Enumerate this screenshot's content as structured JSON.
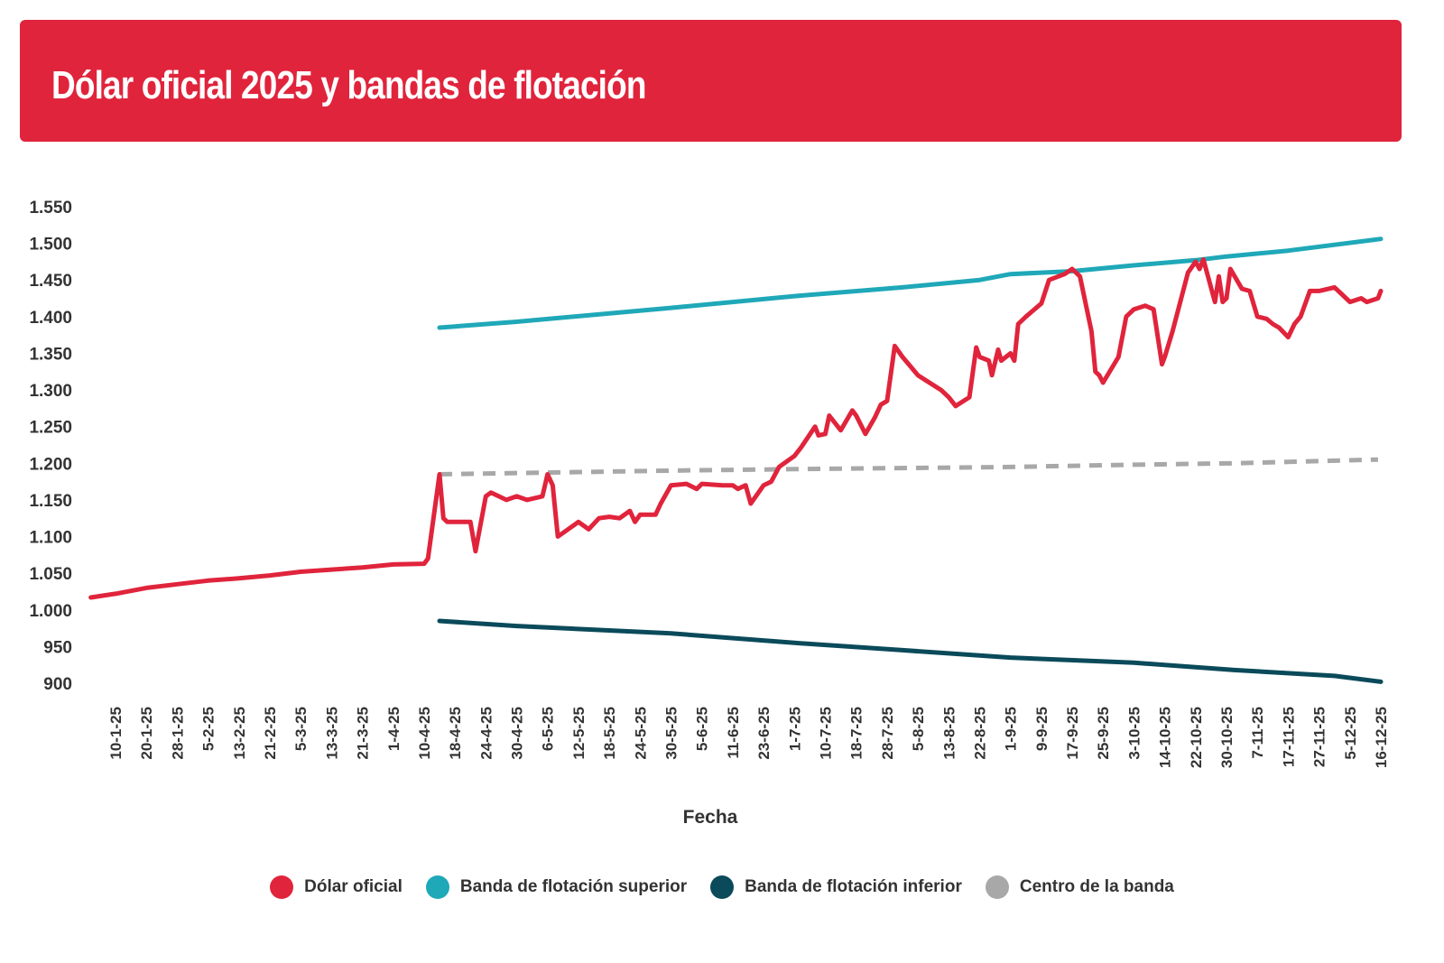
{
  "header": {
    "title": "Dólar oficial 2025 y bandas de flotación",
    "color": "#e0243c"
  },
  "chart_data": {
    "type": "line",
    "title": "Dólar oficial 2025 y bandas de flotación",
    "xlabel": "Fecha",
    "ylabel": "",
    "ylim": [
      900,
      1550
    ],
    "yticks": [
      900,
      950,
      1000,
      1050,
      1100,
      1150,
      1200,
      1250,
      1300,
      1350,
      1400,
      1450,
      1500,
      1550
    ],
    "ytick_labels": [
      "900",
      "950",
      "1.000",
      "1.050",
      "1.100",
      "1.150",
      "1.200",
      "1.250",
      "1.300",
      "1.350",
      "1.400",
      "1.450",
      "1.500",
      "1.550"
    ],
    "xtick_labels": [
      "10-1-25",
      "20-1-25",
      "28-1-25",
      "5-2-25",
      "13-2-25",
      "21-2-25",
      "5-3-25",
      "13-3-25",
      "21-3-25",
      "1-4-25",
      "10-4-25",
      "18-4-25",
      "24-4-25",
      "30-4-25",
      "6-5-25",
      "12-5-25",
      "18-5-25",
      "24-5-25",
      "30-5-25",
      "5-6-25",
      "11-6-25",
      "23-6-25",
      "1-7-25",
      "10-7-25",
      "18-7-25",
      "28-7-25",
      "5-8-25",
      "13-8-25",
      "22-8-25",
      "1-9-25",
      "9-9-25",
      "17-9-25",
      "25-9-25",
      "3-10-25",
      "14-10-25",
      "22-10-25",
      "30-10-25",
      "7-11-25",
      "17-11-25",
      "27-11-25",
      "5-12-25",
      "16-12-25"
    ],
    "grid": false,
    "legend_position": "bottom",
    "series": [
      {
        "name": "Dólar oficial",
        "color": "#e0243c",
        "style": "solid",
        "points": [
          [
            "2-1-25",
            1017
          ],
          [
            "10-1-25",
            1022
          ],
          [
            "20-1-25",
            1030
          ],
          [
            "28-1-25",
            1035
          ],
          [
            "5-2-25",
            1040
          ],
          [
            "13-2-25",
            1043
          ],
          [
            "21-2-25",
            1047
          ],
          [
            "5-3-25",
            1052
          ],
          [
            "13-3-25",
            1055
          ],
          [
            "21-3-25",
            1058
          ],
          [
            "1-4-25",
            1062
          ],
          [
            "10-4-25",
            1063
          ],
          [
            "11-4-25",
            1070
          ],
          [
            "14-4-25",
            1185
          ],
          [
            "15-4-25",
            1125
          ],
          [
            "16-4-25",
            1120
          ],
          [
            "21-4-25",
            1120
          ],
          [
            "22-4-25",
            1080
          ],
          [
            "24-4-25",
            1155
          ],
          [
            "25-4-25",
            1160
          ],
          [
            "28-4-25",
            1150
          ],
          [
            "30-4-25",
            1155
          ],
          [
            "2-5-25",
            1150
          ],
          [
            "5-5-25",
            1155
          ],
          [
            "6-5-25",
            1185
          ],
          [
            "7-5-25",
            1170
          ],
          [
            "8-5-25",
            1100
          ],
          [
            "9-5-25",
            1105
          ],
          [
            "12-5-25",
            1120
          ],
          [
            "14-5-25",
            1110
          ],
          [
            "16-5-25",
            1125
          ],
          [
            "18-5-25",
            1127
          ],
          [
            "20-5-25",
            1125
          ],
          [
            "22-5-25",
            1135
          ],
          [
            "23-5-25",
            1120
          ],
          [
            "24-5-25",
            1130
          ],
          [
            "27-5-25",
            1130
          ],
          [
            "28-5-25",
            1145
          ],
          [
            "30-5-25",
            1170
          ],
          [
            "2-6-25",
            1172
          ],
          [
            "4-6-25",
            1165
          ],
          [
            "5-6-25",
            1172
          ],
          [
            "9-6-25",
            1170
          ],
          [
            "11-6-25",
            1170
          ],
          [
            "13-6-25",
            1165
          ],
          [
            "16-6-25",
            1170
          ],
          [
            "18-6-25",
            1145
          ],
          [
            "20-6-25",
            1155
          ],
          [
            "23-6-25",
            1170
          ],
          [
            "25-6-25",
            1175
          ],
          [
            "27-6-25",
            1195
          ],
          [
            "1-7-25",
            1210
          ],
          [
            "3-7-25",
            1222
          ],
          [
            "7-7-25",
            1250
          ],
          [
            "8-7-25",
            1238
          ],
          [
            "10-7-25",
            1240
          ],
          [
            "11-7-25",
            1265
          ],
          [
            "14-7-25",
            1245
          ],
          [
            "17-7-25",
            1272
          ],
          [
            "18-7-25",
            1265
          ],
          [
            "21-7-25",
            1240
          ],
          [
            "24-7-25",
            1262
          ],
          [
            "26-7-25",
            1280
          ],
          [
            "28-7-25",
            1285
          ],
          [
            "30-7-25",
            1360
          ],
          [
            "1-8-25",
            1345
          ],
          [
            "5-8-25",
            1320
          ],
          [
            "8-8-25",
            1310
          ],
          [
            "11-8-25",
            1300
          ],
          [
            "13-8-25",
            1290
          ],
          [
            "15-8-25",
            1278
          ],
          [
            "19-8-25",
            1290
          ],
          [
            "21-8-25",
            1358
          ],
          [
            "22-8-25",
            1345
          ],
          [
            "25-8-25",
            1340
          ],
          [
            "26-8-25",
            1320
          ],
          [
            "28-8-25",
            1355
          ],
          [
            "29-8-25",
            1340
          ],
          [
            "1-9-25",
            1350
          ],
          [
            "2-9-25",
            1340
          ],
          [
            "3-9-25",
            1390
          ],
          [
            "5-9-25",
            1400
          ],
          [
            "9-9-25",
            1418
          ],
          [
            "11-9-25",
            1450
          ],
          [
            "15-9-25",
            1458
          ],
          [
            "17-9-25",
            1465
          ],
          [
            "19-9-25",
            1455
          ],
          [
            "22-9-25",
            1380
          ],
          [
            "23-9-25",
            1325
          ],
          [
            "24-9-25",
            1320
          ],
          [
            "25-9-25",
            1310
          ],
          [
            "29-9-25",
            1345
          ],
          [
            "1-10-25",
            1400
          ],
          [
            "3-10-25",
            1410
          ],
          [
            "7-10-25",
            1415
          ],
          [
            "10-10-25",
            1410
          ],
          [
            "13-10-25",
            1335
          ],
          [
            "14-10-25",
            1345
          ],
          [
            "16-10-25",
            1380
          ],
          [
            "20-10-25",
            1460
          ],
          [
            "22-10-25",
            1475
          ],
          [
            "23-10-25",
            1465
          ],
          [
            "24-10-25",
            1478
          ],
          [
            "27-10-25",
            1420
          ],
          [
            "28-10-25",
            1455
          ],
          [
            "29-10-25",
            1420
          ],
          [
            "30-10-25",
            1425
          ],
          [
            "31-10-25",
            1465
          ],
          [
            "3-11-25",
            1438
          ],
          [
            "5-11-25",
            1435
          ],
          [
            "7-11-25",
            1400
          ],
          [
            "10-11-25",
            1397
          ],
          [
            "12-11-25",
            1390
          ],
          [
            "14-11-25",
            1385
          ],
          [
            "17-11-25",
            1372
          ],
          [
            "19-11-25",
            1390
          ],
          [
            "21-11-25",
            1400
          ],
          [
            "24-11-25",
            1435
          ],
          [
            "27-11-25",
            1435
          ],
          [
            "1-12-25",
            1440
          ],
          [
            "3-12-25",
            1430
          ],
          [
            "5-12-25",
            1420
          ],
          [
            "9-12-25",
            1425
          ],
          [
            "11-12-25",
            1420
          ],
          [
            "15-12-25",
            1425
          ],
          [
            "16-12-25",
            1435
          ]
        ]
      },
      {
        "name": "Banda de flotación superior",
        "color": "#1fa8b8",
        "style": "solid",
        "points": [
          [
            "14-4-25",
            1385
          ],
          [
            "30-4-25",
            1393
          ],
          [
            "30-5-25",
            1412
          ],
          [
            "1-7-25",
            1428
          ],
          [
            "1-8-25",
            1440
          ],
          [
            "22-8-25",
            1450
          ],
          [
            "1-9-25",
            1458
          ],
          [
            "17-9-25",
            1462
          ],
          [
            "3-10-25",
            1470
          ],
          [
            "22-10-25",
            1477
          ],
          [
            "30-10-25",
            1482
          ],
          [
            "17-11-25",
            1490
          ],
          [
            "16-12-25",
            1506
          ]
        ]
      },
      {
        "name": "Banda de flotación inferior",
        "color": "#0a4a5a",
        "style": "solid",
        "points": [
          [
            "14-4-25",
            985
          ],
          [
            "30-4-25",
            978
          ],
          [
            "30-5-25",
            968
          ],
          [
            "1-7-25",
            955
          ],
          [
            "1-8-25",
            945
          ],
          [
            "1-9-25",
            935
          ],
          [
            "3-10-25",
            928
          ],
          [
            "1-11-25",
            918
          ],
          [
            "1-12-25",
            910
          ],
          [
            "16-12-25",
            902
          ]
        ]
      },
      {
        "name": "Centro de la banda",
        "color": "#a8a8a8",
        "style": "dashed",
        "points": [
          [
            "14-4-25",
            1185
          ],
          [
            "30-5-25",
            1190
          ],
          [
            "1-7-25",
            1192
          ],
          [
            "1-9-25",
            1195
          ],
          [
            "3-10-25",
            1198
          ],
          [
            "1-11-25",
            1200
          ],
          [
            "15-12-25",
            1205
          ]
        ]
      }
    ]
  }
}
